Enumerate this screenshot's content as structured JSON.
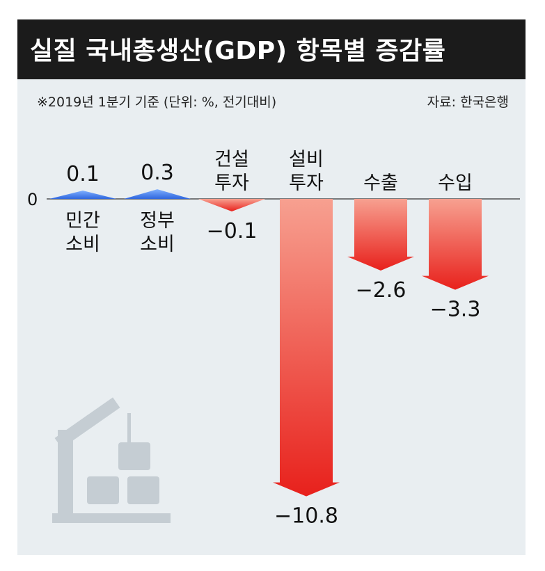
{
  "title": "실질 국내총생산(GDP) 항목별 증감률",
  "note": "※2019년 1분기 기준 (단위: %, 전기대비)",
  "source": "자료: 한국은행",
  "colors": {
    "increase": "#3a6fe0",
    "decrease": "#e8211c",
    "background": "#e9eef1",
    "titlebar": "#1b1b1b"
  },
  "illustration": "crane-lifting-boxes-icon",
  "chart_data": {
    "type": "bar",
    "title": "실질 국내총생산(GDP) 항목별 증감률",
    "unit": "%",
    "zero_label": "0",
    "categories": [
      [
        "민간",
        "소비"
      ],
      [
        "정부",
        "소비"
      ],
      [
        "건설",
        "투자"
      ],
      [
        "설비",
        "투자"
      ],
      [
        "수출"
      ],
      [
        "수입"
      ]
    ],
    "values": [
      0.1,
      0.3,
      -0.1,
      -10.8,
      -2.6,
      -3.3
    ],
    "value_labels": [
      "0.1",
      "0.3",
      "−0.1",
      "−10.8",
      "−2.6",
      "−3.3"
    ],
    "ylim": [
      -11.6,
      0.6
    ]
  }
}
